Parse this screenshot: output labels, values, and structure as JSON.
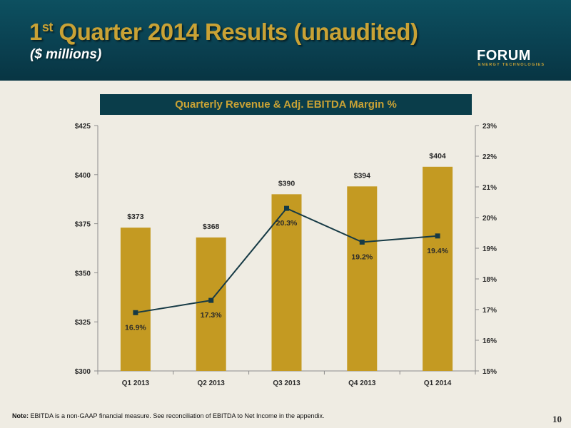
{
  "header": {
    "title_prefix": "1",
    "title_sup": "st",
    "title_rest": " Quarter 2014 Results (unaudited)",
    "subtitle": "($ millions)"
  },
  "logo": {
    "wordmark": "FORUM",
    "tagline": "ENERGY TECHNOLOGIES"
  },
  "colors": {
    "bar": "#c49a22",
    "line": "#163a45",
    "banner": "#0a3d4a",
    "gold_text": "#c9a235"
  },
  "chart_data": {
    "type": "bar",
    "title": "Quarterly Revenue & Adj. EBITDA Margin %",
    "categories": [
      "Q1 2013",
      "Q2 2013",
      "Q3 2013",
      "Q4 2013",
      "Q1 2014"
    ],
    "series": [
      {
        "name": "Revenue",
        "type": "bar",
        "axis": "left",
        "values": [
          373,
          368,
          390,
          394,
          404
        ],
        "labels": [
          "$373",
          "$368",
          "$390",
          "$394",
          "$404"
        ]
      },
      {
        "name": "Adj. EBITDA Margin %",
        "type": "line",
        "axis": "right",
        "values": [
          16.9,
          17.3,
          20.3,
          19.2,
          19.4
        ],
        "labels": [
          "16.9%",
          "17.3%",
          "20.3%",
          "19.2%",
          "19.4%"
        ]
      }
    ],
    "y_left": {
      "range": [
        300,
        425
      ],
      "ticks": [
        300,
        325,
        350,
        375,
        400,
        425
      ],
      "tick_labels": [
        "$300",
        "$325",
        "$350",
        "$375",
        "$400",
        "$425"
      ]
    },
    "y_right": {
      "range": [
        15,
        23
      ],
      "ticks": [
        15,
        16,
        17,
        18,
        19,
        20,
        21,
        22,
        23
      ],
      "tick_labels": [
        "15%",
        "16%",
        "17%",
        "18%",
        "19%",
        "20%",
        "21%",
        "22%",
        "23%"
      ]
    },
    "grid": false,
    "legend": "none"
  },
  "footer": {
    "note_label": "Note:",
    "note_text": " EBITDA is a non-GAAP financial measure. See reconciliation of EBITDA to Net Income in the appendix.",
    "page_number": "10"
  }
}
